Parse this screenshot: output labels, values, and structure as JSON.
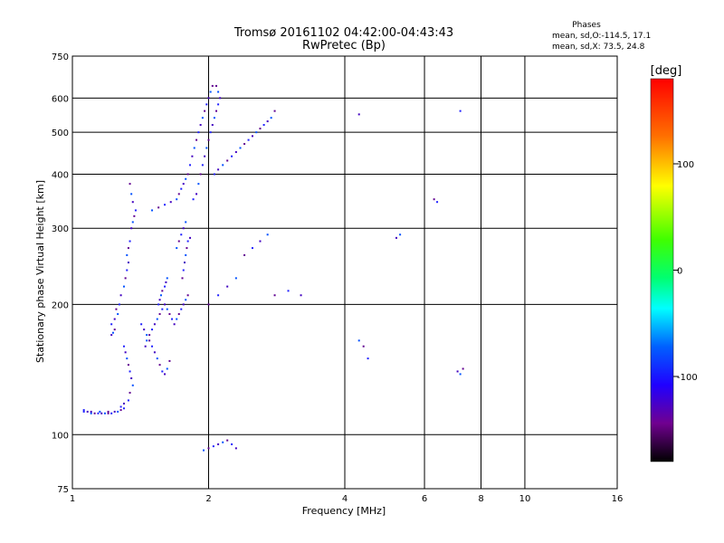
{
  "chart_data": {
    "type": "scatter",
    "title": "Tromsø 20161102 04:42:00-04:43:43",
    "subtitle": "RwPretec (Bp)",
    "xlabel": "Frequency [MHz]",
    "ylabel": "Stationary phase Virtual Height [km]",
    "x_scale": "log",
    "y_scale": "log",
    "xlim": [
      1,
      16
    ],
    "ylim": [
      75,
      750
    ],
    "x_ticks": [
      "1",
      "2",
      "4",
      "6",
      "8",
      "10",
      "16"
    ],
    "x_tick_values": [
      1,
      2,
      4,
      6,
      8,
      10,
      16
    ],
    "y_ticks": [
      "75",
      "100",
      "200",
      "300",
      "400",
      "500",
      "600",
      "750"
    ],
    "y_tick_values": [
      75,
      100,
      200,
      300,
      400,
      500,
      600,
      750
    ],
    "grid": true,
    "stats": {
      "heading": "Phases",
      "line_o": "mean, sd,O:-114.5, 17.1",
      "line_x": "mean, sd,X:  73.5, 24.8"
    },
    "colorbar": {
      "label": "[deg]",
      "range": [
        -180,
        180
      ],
      "ticks": [
        "100",
        "0",
        "-100"
      ],
      "tick_values": [
        100,
        0,
        -100
      ]
    },
    "series": [
      {
        "points": [
          [
            1.06,
            113
          ],
          [
            1.08,
            113
          ],
          [
            1.1,
            112
          ],
          [
            1.12,
            112
          ],
          [
            1.14,
            112
          ],
          [
            1.16,
            112
          ],
          [
            1.18,
            112
          ],
          [
            1.2,
            112
          ],
          [
            1.22,
            112
          ],
          [
            1.24,
            113
          ],
          [
            1.26,
            113
          ],
          [
            1.28,
            114
          ],
          [
            1.3,
            115
          ],
          [
            1.22,
            170
          ],
          [
            1.23,
            172
          ],
          [
            1.24,
            175
          ],
          [
            1.22,
            180
          ],
          [
            1.24,
            185
          ],
          [
            1.26,
            190
          ],
          [
            1.25,
            195
          ],
          [
            1.27,
            200
          ],
          [
            1.28,
            210
          ],
          [
            1.3,
            220
          ],
          [
            1.31,
            230
          ],
          [
            1.32,
            240
          ],
          [
            1.33,
            250
          ],
          [
            1.32,
            260
          ],
          [
            1.33,
            270
          ],
          [
            1.34,
            280
          ],
          [
            1.35,
            300
          ],
          [
            1.36,
            310
          ],
          [
            1.37,
            320
          ],
          [
            1.38,
            330
          ],
          [
            1.36,
            345
          ],
          [
            1.35,
            360
          ],
          [
            1.34,
            380
          ],
          [
            1.3,
            160
          ],
          [
            1.31,
            155
          ],
          [
            1.32,
            150
          ],
          [
            1.33,
            145
          ],
          [
            1.34,
            140
          ],
          [
            1.35,
            135
          ],
          [
            1.36,
            130
          ],
          [
            1.34,
            125
          ],
          [
            1.33,
            120
          ],
          [
            1.45,
            160
          ],
          [
            1.46,
            165
          ],
          [
            1.48,
            170
          ],
          [
            1.5,
            175
          ],
          [
            1.52,
            180
          ],
          [
            1.54,
            185
          ],
          [
            1.56,
            190
          ],
          [
            1.58,
            195
          ],
          [
            1.6,
            200
          ],
          [
            1.62,
            195
          ],
          [
            1.64,
            190
          ],
          [
            1.66,
            185
          ],
          [
            1.68,
            180
          ],
          [
            1.7,
            185
          ],
          [
            1.72,
            190
          ],
          [
            1.74,
            195
          ],
          [
            1.76,
            200
          ],
          [
            1.78,
            205
          ],
          [
            1.8,
            210
          ],
          [
            1.42,
            180
          ],
          [
            1.44,
            175
          ],
          [
            1.46,
            170
          ],
          [
            1.48,
            165
          ],
          [
            1.5,
            160
          ],
          [
            1.52,
            155
          ],
          [
            1.54,
            150
          ],
          [
            1.56,
            145
          ],
          [
            1.58,
            140
          ],
          [
            1.6,
            138
          ],
          [
            1.62,
            142
          ],
          [
            1.64,
            148
          ],
          [
            1.55,
            200
          ],
          [
            1.56,
            205
          ],
          [
            1.57,
            210
          ],
          [
            1.58,
            215
          ],
          [
            1.6,
            220
          ],
          [
            1.61,
            225
          ],
          [
            1.62,
            230
          ],
          [
            1.75,
            230
          ],
          [
            1.76,
            240
          ],
          [
            1.77,
            250
          ],
          [
            1.78,
            260
          ],
          [
            1.79,
            270
          ],
          [
            1.8,
            280
          ],
          [
            1.82,
            285
          ],
          [
            1.5,
            330
          ],
          [
            1.55,
            335
          ],
          [
            1.6,
            340
          ],
          [
            1.65,
            345
          ],
          [
            1.7,
            350
          ],
          [
            1.72,
            360
          ],
          [
            1.74,
            370
          ],
          [
            1.76,
            380
          ],
          [
            1.78,
            390
          ],
          [
            1.8,
            400
          ],
          [
            1.82,
            420
          ],
          [
            1.84,
            440
          ],
          [
            1.86,
            460
          ],
          [
            1.88,
            480
          ],
          [
            1.9,
            500
          ],
          [
            1.92,
            520
          ],
          [
            1.94,
            540
          ],
          [
            1.96,
            560
          ],
          [
            1.98,
            580
          ],
          [
            2.0,
            600
          ],
          [
            2.02,
            620
          ],
          [
            2.04,
            640
          ],
          [
            1.85,
            350
          ],
          [
            1.88,
            360
          ],
          [
            1.9,
            380
          ],
          [
            1.92,
            400
          ],
          [
            1.94,
            420
          ],
          [
            1.96,
            440
          ],
          [
            1.98,
            460
          ],
          [
            2.0,
            480
          ],
          [
            2.02,
            500
          ],
          [
            2.04,
            520
          ],
          [
            2.06,
            540
          ],
          [
            2.08,
            560
          ],
          [
            2.1,
            580
          ],
          [
            2.12,
            600
          ],
          [
            2.1,
            620
          ],
          [
            2.08,
            640
          ],
          [
            2.06,
            400
          ],
          [
            2.1,
            410
          ],
          [
            2.15,
            420
          ],
          [
            2.2,
            430
          ],
          [
            2.25,
            440
          ],
          [
            2.3,
            450
          ],
          [
            2.35,
            460
          ],
          [
            2.4,
            470
          ],
          [
            2.45,
            480
          ],
          [
            2.5,
            490
          ],
          [
            2.55,
            500
          ],
          [
            2.6,
            510
          ],
          [
            2.65,
            520
          ],
          [
            2.7,
            530
          ],
          [
            2.75,
            540
          ],
          [
            2.8,
            560
          ],
          [
            1.06,
            114
          ],
          [
            1.1,
            113
          ],
          [
            1.15,
            113
          ],
          [
            1.2,
            113
          ],
          [
            1.28,
            116
          ],
          [
            1.3,
            118
          ],
          [
            1.7,
            270
          ],
          [
            1.72,
            280
          ],
          [
            1.74,
            290
          ],
          [
            1.76,
            300
          ],
          [
            1.78,
            310
          ],
          [
            2.0,
            200
          ],
          [
            2.1,
            210
          ],
          [
            2.2,
            220
          ],
          [
            2.3,
            230
          ],
          [
            2.4,
            260
          ],
          [
            2.5,
            270
          ],
          [
            2.6,
            280
          ],
          [
            2.7,
            290
          ],
          [
            2.8,
            210
          ],
          [
            3.0,
            215
          ],
          [
            3.2,
            210
          ],
          [
            1.95,
            92
          ],
          [
            2.0,
            93
          ],
          [
            2.05,
            94
          ],
          [
            2.1,
            95
          ],
          [
            2.15,
            96
          ],
          [
            2.2,
            97
          ],
          [
            2.25,
            95
          ],
          [
            2.3,
            93
          ],
          [
            4.3,
            165
          ],
          [
            4.4,
            160
          ],
          [
            4.5,
            150
          ],
          [
            5.2,
            285
          ],
          [
            5.3,
            290
          ],
          [
            6.3,
            350
          ],
          [
            6.4,
            345
          ],
          [
            7.1,
            140
          ],
          [
            7.2,
            138
          ],
          [
            7.3,
            142
          ],
          [
            7.2,
            560
          ],
          [
            4.3,
            550
          ]
        ]
      }
    ]
  }
}
